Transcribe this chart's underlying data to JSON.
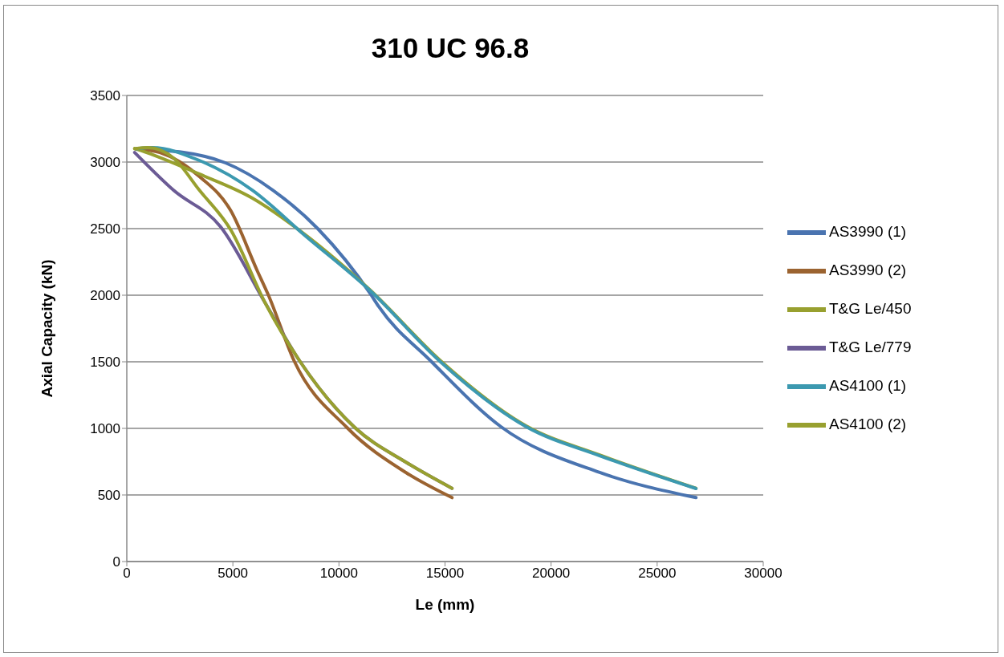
{
  "chart_data": {
    "type": "line",
    "title": "310 UC 96.8",
    "xlabel": "Le (mm)",
    "ylabel": "Axial Capacity (kN)",
    "xlim": [
      0,
      30000
    ],
    "xticks": [
      0,
      5000,
      10000,
      15000,
      20000,
      25000,
      30000
    ],
    "ylim": [
      0,
      3500
    ],
    "yticks": [
      0,
      500,
      1000,
      1500,
      2000,
      2500,
      3000,
      3500
    ],
    "grid": "y",
    "legend": "right",
    "marker": "none",
    "line_style": "solid",
    "series": [
      {
        "name": "AS3990 (1)",
        "color": "#4a74b0",
        "x": [
          450,
          2680,
          4650,
          6885,
          9000,
          11500,
          11870,
          14330,
          17640,
          22290,
          26830
        ],
        "values": [
          3096,
          3072,
          2994,
          2789,
          2500,
          2006,
          1916,
          1506,
          1012,
          669,
          480
        ]
      },
      {
        "name": "AS3990 (2)",
        "color": "#9b6330",
        "x": [
          450,
          1560,
          3420,
          4910,
          6140,
          6660,
          7890,
          10380,
          13210,
          15330
        ],
        "values": [
          3100,
          3072,
          2892,
          2632,
          2187,
          2006,
          1506,
          1006,
          663,
          480
        ]
      },
      {
        "name": "T&G Le/450",
        "color": "#98a02f",
        "x": [
          370,
          930,
          3420,
          5920,
          7780,
          11500,
          14740,
          18830,
          22290,
          26830
        ],
        "values": [
          3102,
          3072,
          2910,
          2729,
          2530,
          2035,
          1515,
          1018,
          800,
          550
        ]
      },
      {
        "name": "T&G Le/779",
        "color": "#6b5b95",
        "x": [
          370,
          2200,
          4430,
          6510,
          8150,
          10750,
          13210,
          15330
        ],
        "values": [
          3072,
          2789,
          2512,
          1946,
          1506,
          1006,
          741,
          550
        ]
      },
      {
        "name": "AS4100 (1)",
        "color": "#3c99b0",
        "x": [
          450,
          1200,
          3420,
          5920,
          8370,
          11500,
          14740,
          18830,
          22290,
          26830
        ],
        "values": [
          3100,
          3108,
          3012,
          2789,
          2452,
          2030,
          1506,
          1012,
          795,
          548
        ]
      },
      {
        "name": "AS4100 (2)",
        "color": "#98a02f",
        "x": [
          370,
          1000,
          2200,
          3420,
          4910,
          6510,
          8150,
          10750,
          13210,
          15330
        ],
        "values": [
          3100,
          3108,
          3030,
          2789,
          2488,
          1946,
          1506,
          1006,
          741,
          550
        ]
      }
    ]
  }
}
